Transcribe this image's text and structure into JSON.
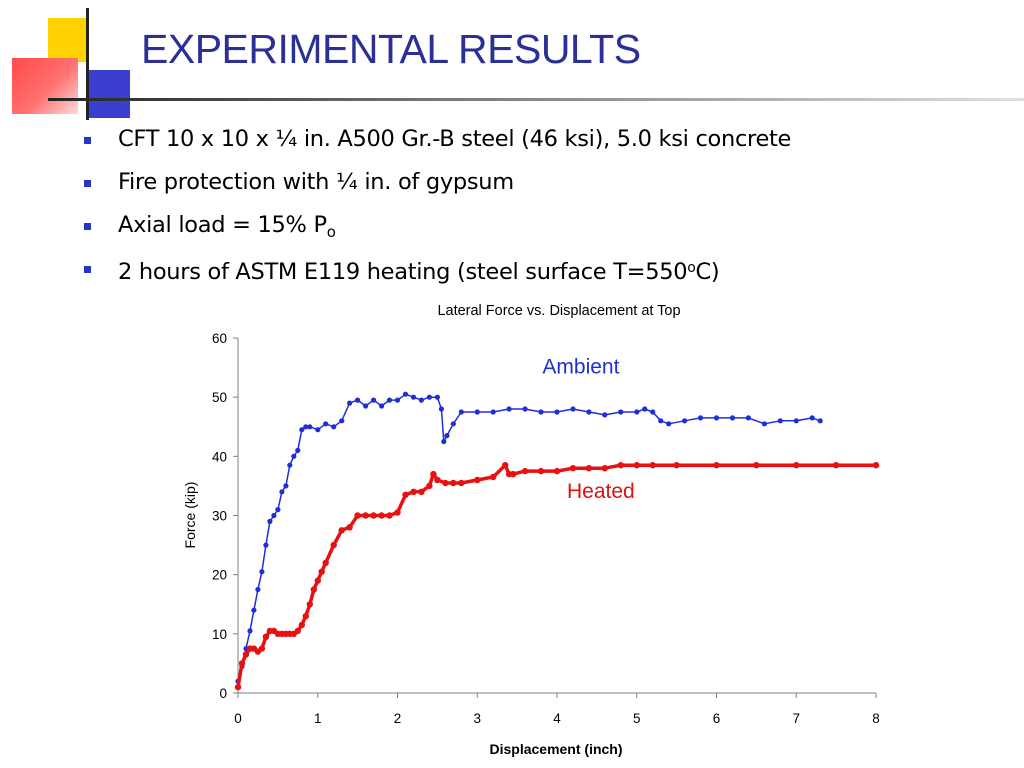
{
  "slide": {
    "title": "EXPERIMENTAL RESULTS",
    "bullets": [
      {
        "text": "CFT 10 x 10 x ¼ in. A500 Gr.-B steel (46 ksi), 5.0 ksi concrete"
      },
      {
        "text": "Fire protection with ¼ in. of gypsum"
      },
      {
        "text": "Axial load = 15% P",
        "sub": "o"
      },
      {
        "text": "2 hours of ASTM E119 heating (steel surface T=550",
        "sup": "o",
        "tail": "C)"
      }
    ],
    "colors": {
      "title": "#2b2f96",
      "bullet": "#2833c8"
    }
  },
  "chart_data": {
    "type": "scatter",
    "title": "Lateral Force vs. Displacement at Top",
    "xlabel": "Displacement (inch)",
    "ylabel": "Force (kip)",
    "xlim": [
      0,
      8
    ],
    "ylim": [
      0,
      60
    ],
    "xticks": [
      "0",
      "1",
      "2",
      "3",
      "4",
      "5",
      "6",
      "7",
      "8"
    ],
    "yticks": [
      "0",
      "10",
      "20",
      "30",
      "40",
      "50",
      "60"
    ],
    "grid": false,
    "annotations": [
      {
        "text": "Ambient",
        "x": 4.3,
        "y": 54,
        "color": "#1f2fd8"
      },
      {
        "text": "Heated",
        "x": 4.55,
        "y": 33,
        "color": "#e01010"
      }
    ],
    "series": [
      {
        "name": "Ambient",
        "color": "#1f2fd8",
        "x": [
          0,
          0.05,
          0.1,
          0.15,
          0.2,
          0.25,
          0.3,
          0.35,
          0.4,
          0.45,
          0.5,
          0.55,
          0.6,
          0.65,
          0.7,
          0.75,
          0.8,
          0.85,
          0.9,
          1.0,
          1.1,
          1.2,
          1.3,
          1.4,
          1.5,
          1.6,
          1.7,
          1.8,
          1.9,
          2.0,
          2.1,
          2.2,
          2.3,
          2.4,
          2.5,
          2.55,
          2.58,
          2.62,
          2.7,
          2.8,
          3.0,
          3.2,
          3.4,
          3.6,
          3.8,
          4.0,
          4.2,
          4.4,
          4.6,
          4.8,
          5.0,
          5.1,
          5.2,
          5.3,
          5.4,
          5.6,
          5.8,
          6.0,
          6.2,
          6.4,
          6.6,
          6.8,
          7.0,
          7.2,
          7.3
        ],
        "y": [
          2,
          4.5,
          7.5,
          10.5,
          14,
          17.5,
          20.5,
          25,
          29,
          30,
          31,
          34,
          35,
          38.5,
          40,
          41,
          44.5,
          45,
          45,
          44.5,
          45.5,
          45,
          46,
          49,
          49.5,
          48.5,
          49.5,
          48.5,
          49.5,
          49.5,
          50.5,
          50,
          49.5,
          50,
          50,
          48,
          42.5,
          43.5,
          45.5,
          47.5,
          47.5,
          47.5,
          48,
          48,
          47.5,
          47.5,
          48,
          47.5,
          47,
          47.5,
          47.5,
          48,
          47.5,
          46,
          45.5,
          46,
          46.5,
          46.5,
          46.5,
          46.5,
          45.5,
          46,
          46,
          46.5,
          46
        ]
      },
      {
        "name": "Heated",
        "color": "#e81010",
        "x": [
          0,
          0.05,
          0.1,
          0.15,
          0.2,
          0.25,
          0.3,
          0.35,
          0.4,
          0.45,
          0.5,
          0.55,
          0.6,
          0.65,
          0.7,
          0.75,
          0.8,
          0.85,
          0.9,
          0.95,
          1.0,
          1.05,
          1.1,
          1.2,
          1.3,
          1.4,
          1.5,
          1.6,
          1.7,
          1.8,
          1.9,
          2.0,
          2.1,
          2.2,
          2.3,
          2.4,
          2.45,
          2.5,
          2.6,
          2.7,
          2.8,
          3.0,
          3.2,
          3.35,
          3.4,
          3.45,
          3.6,
          3.8,
          4.0,
          4.2,
          4.4,
          4.6,
          4.8,
          5.0,
          5.2,
          5.5,
          6.0,
          6.5,
          7.0,
          7.5,
          8.0
        ],
        "y": [
          1,
          5,
          6.5,
          7.5,
          7.5,
          7,
          7.5,
          9.5,
          10.5,
          10.5,
          10,
          10,
          10,
          10,
          10,
          10.5,
          11.5,
          13,
          15,
          17.5,
          19,
          20.5,
          22,
          25,
          27.5,
          28,
          30,
          30,
          30,
          30,
          30,
          30.5,
          33.5,
          34,
          34,
          35,
          37,
          36,
          35.5,
          35.5,
          35.5,
          36,
          36.5,
          38.5,
          37,
          37,
          37.5,
          37.5,
          37.5,
          38,
          38,
          38,
          38.5,
          38.5,
          38.5,
          38.5,
          38.5,
          38.5,
          38.5,
          38.5,
          38.5
        ]
      }
    ]
  }
}
